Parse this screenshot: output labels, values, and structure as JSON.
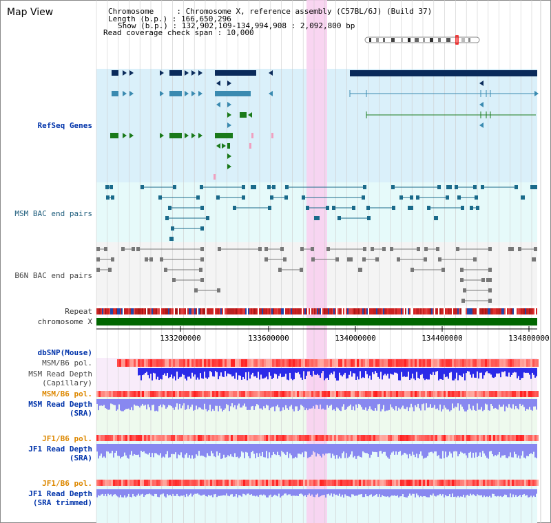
{
  "title": "Map View",
  "header": {
    "chromosome_label": "Chromosome",
    "chromosome_value": "Chromosome X, reference assembly (C57BL/6J) (Build 37)",
    "length_label": "Length (b.p.)",
    "length_value": "166,650,296",
    "show_label": "Show (b.p.)",
    "show_value": "132,902,109-134,994,908 : 2,092,800 bp",
    "coverage_label": "Read coverage check span",
    "coverage_value": "10,000"
  },
  "tracks": {
    "refseq": "RefSeq Genes",
    "msm_bac": "MSM BAC end pairs",
    "b6n_bac": "B6N BAC end pairs",
    "repeat": "Repeat",
    "chromosome": "chromosome X",
    "dbsnp": "dbSNP(Mouse)",
    "msm_b6_pol_1": "MSM/B6 pol.",
    "msm_depth_cap_1": "MSM Read Depth",
    "msm_depth_cap_2": "(Capillary)",
    "msm_b6_pol_2": "MSM/B6 pol.",
    "msm_depth_sra_1": "MSM Read Depth",
    "msm_depth_sra_2": "(SRA)",
    "jf1_b6_pol_1": "JF1/B6 pol.",
    "jf1_depth_sra_1": "JF1 Read Depth",
    "jf1_depth_sra_2": "(SRA)",
    "jf1_b6_pol_2": "JF1/B6 pol.",
    "jf1_depth_trim_1": "JF1 Read Depth",
    "jf1_depth_trim_2": "(SRA trimmed)"
  },
  "axis": {
    "ticks": [
      "133200000",
      "133600000",
      "134000000",
      "134400000",
      "134800000"
    ]
  },
  "colors": {
    "refseq_bg": "#daf0fa",
    "msm_bg": "#e6fafa",
    "b6n_bg": "#f2f2f2",
    "highlight": "#f8d0f0",
    "gene_dark": "#0a2a5a",
    "gene_blue": "#3a8ab0",
    "gene_green": "#1a7a1a",
    "bac_teal": "#1a6a8a",
    "bac_gray": "#777777",
    "chrom_green": "#006600",
    "depth_blue": "#2a2ae8",
    "depth_lav": "#8888f0"
  }
}
